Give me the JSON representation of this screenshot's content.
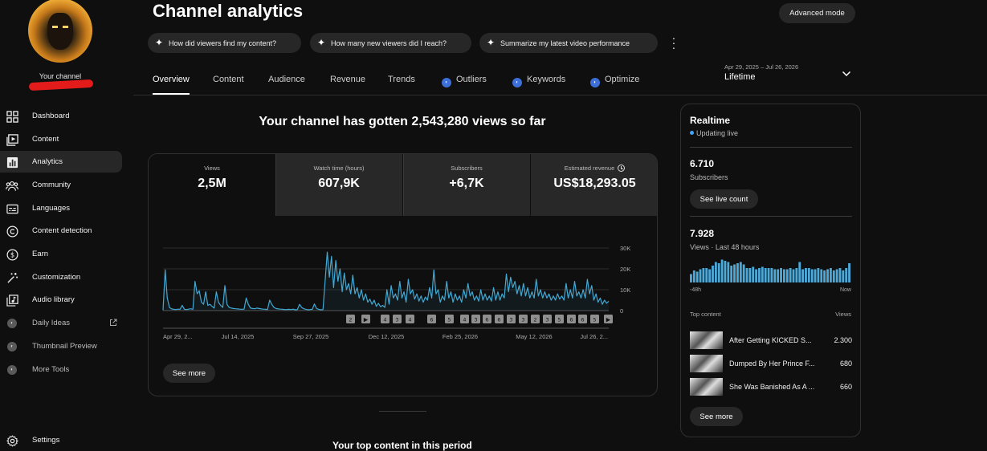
{
  "sidebar": {
    "channel_label": "Your channel",
    "items": [
      {
        "label": "Dashboard",
        "icon": "dashboard-icon"
      },
      {
        "label": "Content",
        "icon": "content-icon"
      },
      {
        "label": "Analytics",
        "icon": "analytics-icon"
      },
      {
        "label": "Community",
        "icon": "community-icon"
      },
      {
        "label": "Languages",
        "icon": "languages-icon"
      },
      {
        "label": "Content detection",
        "icon": "copyright-icon"
      },
      {
        "label": "Earn",
        "icon": "dollar-icon"
      },
      {
        "label": "Customization",
        "icon": "magic-wand-icon"
      },
      {
        "label": "Audio library",
        "icon": "audio-library-icon"
      },
      {
        "label": "Daily Ideas",
        "icon": "extension-icon"
      },
      {
        "label": "Thumbnail Preview",
        "icon": "extension-icon"
      },
      {
        "label": "More Tools",
        "icon": "extension-icon"
      }
    ],
    "settings_label": "Settings",
    "active": "Analytics"
  },
  "header": {
    "title": "Channel analytics",
    "advanced_mode": "Advanced mode",
    "chips": [
      "How did viewers find my content?",
      "How many new viewers did I reach?",
      "Summarize my latest video performance"
    ]
  },
  "tabs": [
    {
      "label": "Overview",
      "active": true
    },
    {
      "label": "Content"
    },
    {
      "label": "Audience"
    },
    {
      "label": "Revenue"
    },
    {
      "label": "Trends"
    },
    {
      "label": "Outliers",
      "extension": true
    },
    {
      "label": "Keywords",
      "extension": true
    },
    {
      "label": "Optimize",
      "extension": true
    }
  ],
  "date": {
    "range": "Apr 29, 2025 – Jul 26, 2026",
    "period": "Lifetime"
  },
  "overview": {
    "headline": "Your channel has gotten 2,543,280 views so far",
    "metrics": [
      {
        "label": "Views",
        "value": "2,5M"
      },
      {
        "label": "Watch time (hours)",
        "value": "607,9K"
      },
      {
        "label": "Subscribers",
        "value": "+6,7K"
      },
      {
        "label": "Estimated revenue",
        "value": "US$18,293.05"
      }
    ],
    "see_more": "See more",
    "video_markers": [
      "2",
      "▶",
      "4",
      "3",
      "4",
      "6",
      "5",
      "4",
      "3",
      "6",
      "6",
      "3",
      "3",
      "2",
      "3",
      "5",
      "6",
      "6",
      "5",
      "▶"
    ]
  },
  "chart_data": {
    "type": "line",
    "x_tick_labels": [
      "Apr 29, 2...",
      "Jul 14, 2025",
      "Sep 27, 2025",
      "Dec 12, 2025",
      "Feb 25, 2026",
      "May 12, 2026",
      "Jul 26, 2..."
    ],
    "y_tick_labels": [
      "30K",
      "20K",
      "10K",
      "0"
    ],
    "ylim": [
      0,
      30000
    ],
    "series": [
      {
        "color": "#41a9d4",
        "values": [
          200,
          19500,
          6000,
          1500,
          800,
          600,
          500,
          700,
          600,
          2500,
          600,
          500,
          700,
          900,
          600,
          14000,
          8000,
          9500,
          4000,
          3000,
          9000,
          2500,
          3000,
          2000,
          1200,
          9000,
          4000,
          2500,
          1500,
          12000,
          3000,
          1500,
          1200,
          1000,
          900,
          800,
          700,
          600,
          700,
          6000,
          3000,
          1200,
          1000,
          900,
          1200,
          1000,
          800,
          700,
          600,
          500,
          5000,
          3000,
          1500,
          1000,
          800,
          700,
          600,
          500,
          500,
          600,
          500,
          700,
          400,
          500,
          3000,
          1500,
          900,
          600,
          400,
          500,
          600,
          3200,
          1000,
          600,
          400,
          500,
          14000,
          28000,
          16000,
          26000,
          11000,
          24000,
          14000,
          20000,
          9000,
          18000,
          10000,
          13000,
          8000,
          17000,
          8000,
          11000,
          6000,
          10000,
          5000,
          8000,
          4000,
          5500,
          3000,
          5000,
          2000,
          3500,
          1800,
          2500,
          1500,
          10000,
          3000,
          12000,
          6000,
          8000,
          5000,
          14000,
          6000,
          9000,
          4000,
          15000,
          8000,
          10000,
          5500,
          8000,
          4500,
          7000,
          4000,
          6500,
          5000,
          11000,
          6000,
          19500,
          8000,
          10000,
          4000,
          7000,
          5000,
          14000,
          6000,
          9000,
          4000,
          8000,
          5000,
          7000,
          4000,
          10000,
          6000,
          13000,
          7000,
          9000,
          5000,
          7000,
          4500,
          10000,
          5000,
          8000,
          5000,
          7000,
          4500,
          11000,
          5000,
          9000,
          5000,
          8000,
          6000,
          17500,
          9000,
          16000,
          11000,
          14000,
          8000,
          12000,
          7000,
          13000,
          7000,
          11000,
          6000,
          9000,
          6000,
          15000,
          7000,
          10000,
          6000,
          9000,
          6000,
          8000,
          5000,
          7000,
          5000,
          8000,
          5500,
          7000,
          5000,
          13000,
          6000,
          10000,
          6000,
          14000,
          7000,
          9000,
          6000,
          10000,
          6000,
          15000,
          8000,
          12000,
          5000,
          8000,
          4000,
          6000,
          3000,
          5000,
          3500,
          4500
        ]
      }
    ]
  },
  "realtime": {
    "title": "Realtime",
    "status": "Updating live",
    "subscribers_value": "6.710",
    "subscribers_label": "Subscribers",
    "live_count": "See live count",
    "views_value": "7.928",
    "views_label": "Views · Last 48 hours",
    "axis_start": "-48h",
    "axis_end": "Now",
    "bars": [
      0.35,
      0.5,
      0.45,
      0.55,
      0.6,
      0.6,
      0.55,
      0.7,
      0.85,
      0.8,
      0.95,
      0.9,
      0.85,
      0.7,
      0.75,
      0.8,
      0.85,
      0.75,
      0.6,
      0.6,
      0.65,
      0.55,
      0.6,
      0.65,
      0.6,
      0.6,
      0.6,
      0.55,
      0.55,
      0.6,
      0.55,
      0.55,
      0.6,
      0.55,
      0.6,
      0.85,
      0.55,
      0.6,
      0.6,
      0.55,
      0.55,
      0.6,
      0.55,
      0.5,
      0.55,
      0.6,
      0.5,
      0.55,
      0.6,
      0.5,
      0.6,
      0.8
    ],
    "top_content_label": "Top content",
    "views_col_label": "Views",
    "top_content": [
      {
        "title": "After Getting KICKED S...",
        "views": "2.300"
      },
      {
        "title": "Dumped By Her Prince F...",
        "views": "680"
      },
      {
        "title": "She Was Banished As A ...",
        "views": "660"
      }
    ],
    "see_more": "See more"
  },
  "footer": {
    "top_content_title": "Your top content in this period"
  }
}
